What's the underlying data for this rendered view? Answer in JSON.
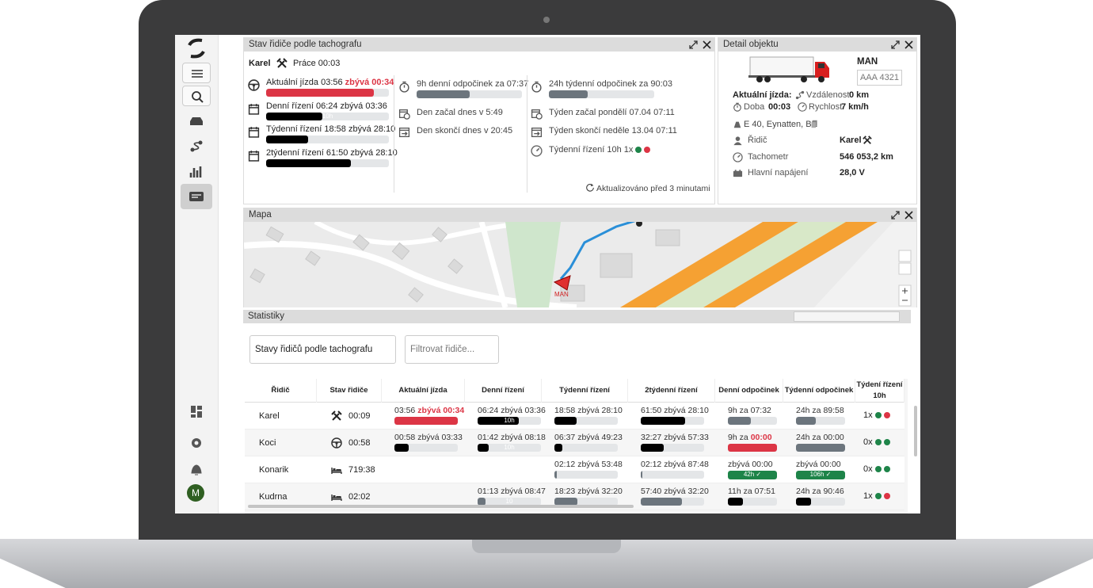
{
  "sidebar": {
    "avatar": "M"
  },
  "tacho": {
    "title": "Stav řidiče podle tachografu",
    "driver": "Karel",
    "activity": "Práce 00:03",
    "driving": [
      {
        "label": "Aktuální jízda 03:56",
        "extra": "zbývá 00:34",
        "bar": 88,
        "color": "#dc3545"
      },
      {
        "label": "Denní řízení 06:24 zbývá 03:36",
        "bar": 46,
        "bar_label": "10h",
        "color": "#000000"
      },
      {
        "label": "Týdenní řízení 18:58 zbývá 28:10",
        "bar": 34,
        "color": "#000000"
      },
      {
        "label": "2týdenní řízení 61:50 zbývá 28:10",
        "bar": 69,
        "color": "#000000"
      }
    ],
    "day": [
      {
        "label": "9h denní odpočinek za 07:37",
        "bar": 50,
        "color": "#6c757d"
      },
      {
        "label": "Den začal dnes v 5:49"
      },
      {
        "label": "Den skončí dnes v 20:45"
      }
    ],
    "week": [
      {
        "label": "24h týdenní odpočinek za 90:03",
        "bar": 37,
        "color": "#6c757d"
      },
      {
        "label": "Týden začal pondělí 07.04 07:11"
      },
      {
        "label": "Týden skončí neděle 13.04 07:11"
      },
      {
        "label": "Týdenní řízení 10h 1x",
        "dots": [
          "#1e8449",
          "#dc3545"
        ]
      }
    ],
    "updated": "Aktualizováno před 3 minutami"
  },
  "detail": {
    "title": "Detail objektu",
    "brand": "MAN",
    "plate": "AAA 4321",
    "current": "Aktuální jízda:",
    "distance_label": "Vzdálenost",
    "distance": "0 km",
    "duration_label": "Doba",
    "duration": "00:03",
    "speed_label": "Rychlost",
    "speed": "7 km/h",
    "location": "E 40, Eynatten, BE",
    "rows": [
      {
        "label": "Řidič",
        "value": "Karel"
      },
      {
        "label": "Tachometr",
        "value": "546 053,2 km"
      },
      {
        "label": "Hlavní napájení",
        "value": "28,0 V"
      }
    ]
  },
  "map": {
    "title": "Mapa",
    "marker": "MAN"
  },
  "stats": {
    "title": "Statistiky",
    "select": "Stavy řidičů podle tachografu",
    "filter": "Filtrovat řidiče...",
    "columns": [
      "Řidič",
      "Stav řidiče",
      "Aktuální jízda",
      "Denní řízení",
      "Týdenní řízení",
      "2týdenní řízení",
      "Denní odpočinek",
      "Týdenní odpočinek",
      "Týdení řízení 10h"
    ],
    "rows": [
      {
        "driver": "Karel",
        "status": "00:09",
        "cells": [
          {
            "text": "03:56",
            "extra": "zbývá 00:34",
            "bar": 100,
            "color": "#dc3545"
          },
          {
            "text": "06:24 zbývá 03:36",
            "bar": 65,
            "color": "#000000",
            "bar_label": "10h"
          },
          {
            "text": "18:58 zbývá 28:10",
            "bar": 35,
            "color": "#000000"
          },
          {
            "text": "61:50 zbývá 28:10",
            "bar": 70,
            "color": "#000000"
          },
          {
            "text": "9h za 07:32",
            "bar": 47,
            "color": "#6c757d"
          },
          {
            "text": "24h za 89:58",
            "bar": 40,
            "color": "#6c757d"
          }
        ],
        "count": "1x",
        "dots": [
          "#1e8449",
          "#dc3545"
        ]
      },
      {
        "driver": "Koci",
        "status": "00:58",
        "cells": [
          {
            "text": "00:58 zbývá 03:33",
            "bar": 22,
            "color": "#000000"
          },
          {
            "text": "01:42 zbývá 08:18",
            "bar": 17,
            "color": "#000000",
            "bar_label": "10h"
          },
          {
            "text": "06:37 zbývá 49:23",
            "bar": 12,
            "color": "#000000"
          },
          {
            "text": "32:27 zbývá 57:33",
            "bar": 36,
            "color": "#000000"
          },
          {
            "text": "9h za",
            "extra": "00:00",
            "bar": 100,
            "color": "#dc3545"
          },
          {
            "text": "24h za 00:00",
            "bar": 100,
            "color": "#6c757d"
          }
        ],
        "count": "0x",
        "dots": [
          "#1e8449",
          "#1e8449"
        ]
      },
      {
        "driver": "Konarik",
        "status": "719:38",
        "cells": [
          null,
          null,
          {
            "text": "02:12 zbývá 53:48",
            "bar": 4,
            "color": "#6c757d"
          },
          {
            "text": "02:12 zbývá 87:48",
            "bar": 3,
            "color": "#6c757d"
          },
          {
            "text": "zbývá 00:00",
            "bar": 100,
            "color": "#1e8449",
            "bar_label": "42h ✓"
          },
          {
            "text": "zbývá 00:00",
            "bar": 100,
            "color": "#1e8449",
            "bar_label": "106h ✓"
          }
        ],
        "count": "0x",
        "dots": [
          "#1e8449",
          "#1e8449"
        ]
      },
      {
        "driver": "Kudrna",
        "status": "02:02",
        "cells": [
          null,
          {
            "text": "01:13 zbývá 08:47",
            "bar": 12,
            "color": "#6c757d",
            "bar_label": "10"
          },
          {
            "text": "18:23 zbývá 32:20",
            "bar": 36,
            "color": "#6c757d"
          },
          {
            "text": "57:40 zbývá 32:20",
            "bar": 65,
            "color": "#6c757d"
          },
          {
            "text": "11h za 07:51",
            "bar": 30,
            "color": "#000000"
          },
          {
            "text": "24h za 90:46",
            "bar": 30,
            "color": "#000000"
          }
        ],
        "count": "1x",
        "dots": [
          "#1e8449",
          "#dc3545"
        ]
      }
    ]
  }
}
